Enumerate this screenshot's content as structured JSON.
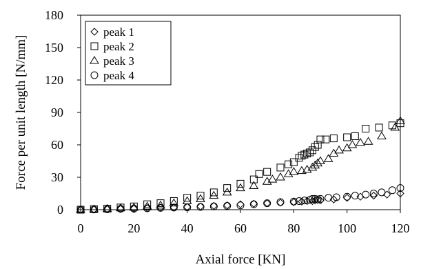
{
  "chart_data": {
    "type": "scatter",
    "title": "",
    "xlabel": "Axial  force [KN]",
    "ylabel": "Force per unit  length  [N/mm]",
    "xlim": [
      0,
      120
    ],
    "ylim": [
      0,
      180
    ],
    "xticks": [
      "0",
      "20",
      "40",
      "60",
      "80",
      "100",
      "120"
    ],
    "yticks": [
      "0",
      "30",
      "60",
      "90",
      "120",
      "150",
      "180"
    ],
    "grid": false,
    "legend_position": "top-left",
    "series": [
      {
        "name": "peak 1",
        "marker": "diamond",
        "x": [
          0,
          5,
          10,
          15,
          20,
          25,
          30,
          35,
          40,
          45,
          50,
          55,
          60,
          65,
          70,
          75,
          80,
          83,
          85,
          87,
          88,
          89,
          90,
          95,
          100,
          105,
          110,
          115,
          120
        ],
        "y": [
          0,
          0.2,
          0.5,
          0.8,
          1,
          1.5,
          2,
          2,
          2.5,
          3,
          3.5,
          4,
          5,
          5.5,
          6,
          6.5,
          7,
          7.5,
          8,
          8,
          8.5,
          9,
          8.5,
          9.5,
          11,
          12,
          13,
          14,
          15
        ]
      },
      {
        "name": "peak 2",
        "marker": "square",
        "x": [
          0,
          5,
          10,
          15,
          20,
          25,
          30,
          35,
          40,
          45,
          50,
          55,
          60,
          65,
          67,
          70,
          75,
          78,
          80,
          82,
          83,
          84,
          85,
          86,
          87,
          88,
          89,
          90,
          92,
          95,
          100,
          103,
          107,
          112,
          117,
          120
        ],
        "y": [
          0,
          0.5,
          1,
          2,
          3,
          5,
          6,
          8,
          11,
          13,
          16,
          20,
          24,
          28,
          33,
          35,
          39,
          42,
          44,
          48,
          50,
          51,
          52,
          53,
          55,
          58,
          60,
          65,
          65,
          66,
          67,
          68,
          75,
          76,
          78,
          80
        ]
      },
      {
        "name": "peak 3",
        "marker": "triangle",
        "x": [
          0,
          5,
          10,
          15,
          20,
          25,
          30,
          35,
          40,
          45,
          50,
          55,
          60,
          65,
          70,
          72,
          75,
          78,
          80,
          83,
          85,
          87,
          88,
          89,
          90,
          93,
          95,
          97,
          100,
          102,
          105,
          108,
          113,
          118,
          120
        ],
        "y": [
          0,
          0.3,
          0.7,
          1.5,
          2,
          3,
          4,
          6,
          8,
          10,
          13,
          16,
          20,
          22,
          26,
          28,
          30,
          33,
          35,
          36,
          37,
          39,
          41,
          43,
          45,
          47,
          52,
          55,
          57,
          60,
          62,
          63,
          68,
          76,
          82
        ]
      },
      {
        "name": "peak 4",
        "marker": "circle",
        "x": [
          0,
          5,
          10,
          15,
          20,
          25,
          30,
          35,
          40,
          45,
          50,
          55,
          60,
          65,
          70,
          75,
          80,
          82,
          84,
          86,
          87,
          88,
          89,
          90,
          93,
          96,
          100,
          103,
          107,
          110,
          113,
          117,
          120
        ],
        "y": [
          0,
          0.2,
          0.4,
          0.8,
          1,
          1.3,
          1.7,
          2,
          2.2,
          2.6,
          3,
          3.5,
          4,
          5,
          6,
          7,
          7.5,
          8,
          8.5,
          9,
          10,
          10,
          9.5,
          10,
          11,
          11.5,
          12,
          13,
          14,
          15,
          16,
          18,
          20
        ]
      }
    ]
  }
}
